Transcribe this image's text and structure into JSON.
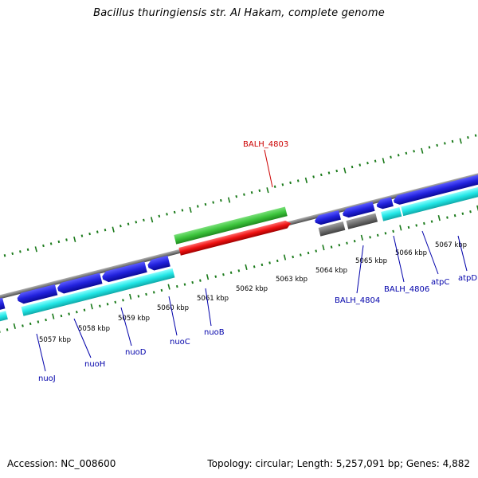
{
  "title": "Bacillus thuringiensis str. Al Hakam, complete genome",
  "footer": {
    "accession": "Accession: NC_008600",
    "summary": "Topology: circular; Length: 5,257,091 bp; Genes: 4,882"
  },
  "colors": {
    "backbone": "#808080",
    "tick": "#1a7a1a",
    "cds_forward": "#2222dd",
    "cds_reverse": "#22e6e6",
    "highlight_gene": "#3cc43c",
    "highlight_cds": "#ee1111",
    "pseudo": "#707070",
    "label_blue": "#0000aa",
    "label_red": "#cc0000"
  },
  "scale": {
    "unit": "kbp",
    "labels": [
      "5057 kbp",
      "5058 kbp",
      "5059 kbp",
      "5060 kbp",
      "5061 kbp",
      "5062 kbp",
      "5063 kbp",
      "5064 kbp",
      "5065 kbp",
      "5066 kbp",
      "5067 kbp"
    ]
  },
  "gene_labels": [
    {
      "name": "nuoJ"
    },
    {
      "name": "nuoH"
    },
    {
      "name": "nuoD"
    },
    {
      "name": "nuoC"
    },
    {
      "name": "nuoB"
    },
    {
      "name": "BALH_4803"
    },
    {
      "name": "BALH_4804"
    },
    {
      "name": "BALH_4806"
    },
    {
      "name": "atpC"
    },
    {
      "name": "atpD"
    }
  ]
}
